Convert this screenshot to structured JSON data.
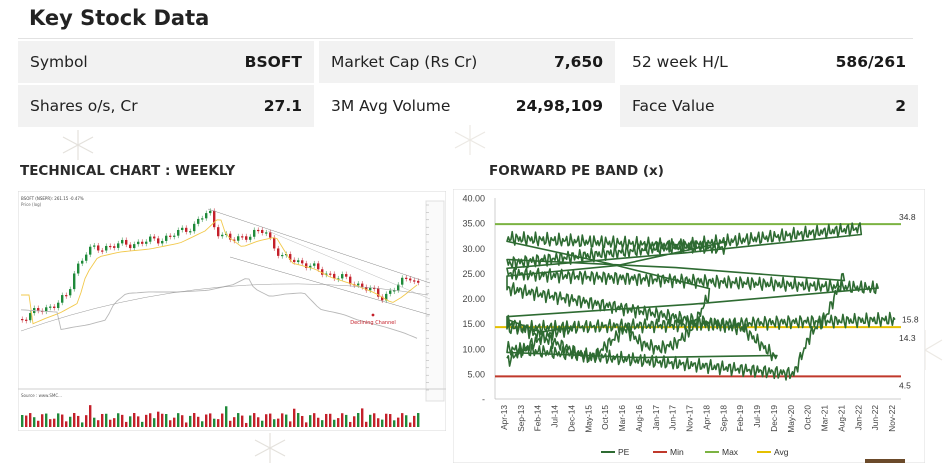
{
  "header": {
    "title": "Key Stock Data"
  },
  "stock": {
    "symbol": {
      "label": "Symbol",
      "value": "BSOFT"
    },
    "shares": {
      "label": "Shares o/s, Cr",
      "value": "27.1"
    },
    "mcap": {
      "label": "Market Cap (Rs Cr)",
      "value": "7,650"
    },
    "avgvol": {
      "label": "3M Avg Volume",
      "value": "24,98,109"
    },
    "hl": {
      "label": "52 week H/L",
      "value": "586/261"
    },
    "fv": {
      "label": "Face Value",
      "value": "2"
    }
  },
  "technical": {
    "title": "TECHNICAL CHART : WEEKLY",
    "annotation": "Declining Channel",
    "source": "Source : www.SMC...",
    "colors": {
      "up": "#1f8a3a",
      "down": "#c4202a",
      "ma1": "#f2c94c",
      "ma2": "#b8b8b8"
    }
  },
  "forward_pe": {
    "title": "FORWARD PE BAND (x)",
    "legend": [
      "PE",
      "Min",
      "Max",
      "Avg"
    ],
    "colors": {
      "pe": "#2e6b32",
      "min": "#c0392b",
      "max": "#7cb342",
      "avg": "#e5c000"
    }
  },
  "chart_data": [
    {
      "type": "line",
      "title": "FORWARD PE BAND (x)",
      "ylim": [
        0,
        40
      ],
      "yticks": [
        "40.00",
        "35.00",
        "30.00",
        "25.00",
        "20.00",
        "15.00",
        "10.00",
        "5.00",
        "-"
      ],
      "xticks": [
        "Apr-13",
        "Sep-13",
        "Feb-14",
        "Jul-14",
        "Dec-14",
        "May-15",
        "Oct-15",
        "Mar-16",
        "Aug-16",
        "Jan-17",
        "Jun-17",
        "Nov-17",
        "Apr-18",
        "Sep-18",
        "Feb-19",
        "Jul-19",
        "Dec-19",
        "May-20",
        "Oct-20",
        "Mar-21",
        "Aug-21",
        "Jan-22",
        "Jun-22",
        "Nov-22"
      ],
      "series": [
        {
          "name": "PE",
          "x": [
            "Apr-13",
            "Sep-13",
            "Feb-14",
            "Jul-14",
            "Dec-14",
            "Mar-15",
            "May-15",
            "Oct-15",
            "Mar-16",
            "Aug-16",
            "Jan-17",
            "Jun-17",
            "Nov-17",
            "Apr-18",
            "Jun-18",
            "Sep-18",
            "Oct-18",
            "Dec-18",
            "Feb-19",
            "Jul-19",
            "Dec-19",
            "Mar-20",
            "May-20",
            "Oct-20",
            "Mar-21",
            "Aug-21",
            "Nov-21",
            "Jan-22",
            "Mar-22",
            "Jun-22",
            "Aug-22",
            "Oct-22",
            "Nov-22"
          ],
          "values": [
            7.5,
            10,
            12,
            13.5,
            14,
            15.5,
            8,
            11,
            14,
            11,
            10,
            11,
            14,
            21,
            32,
            30,
            25,
            22,
            14,
            11,
            8,
            10,
            5,
            13,
            17,
            25,
            27,
            34,
            25,
            22,
            16,
            14,
            15.8
          ]
        },
        {
          "name": "Min",
          "values": [
            4.5
          ]
        },
        {
          "name": "Max",
          "values": [
            34.8
          ]
        },
        {
          "name": "Avg",
          "values": [
            14.3
          ]
        }
      ],
      "labels": {
        "max": "34.8",
        "avg": "14.3",
        "min": "4.5",
        "last": "15.8"
      }
    }
  ]
}
